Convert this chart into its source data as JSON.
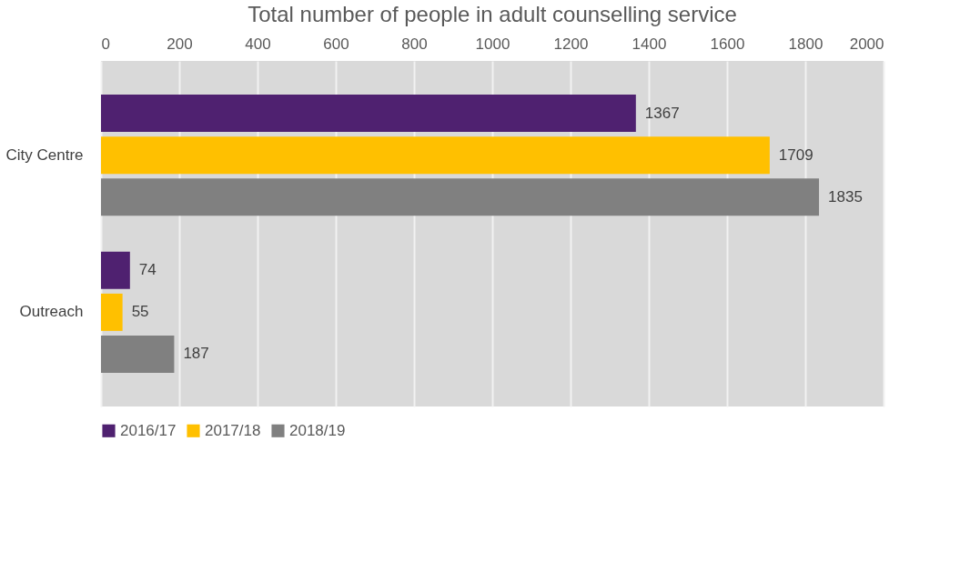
{
  "chart_data": {
    "type": "bar",
    "orientation": "horizontal",
    "title": "Total number of people in adult counselling service",
    "categories": [
      "City Centre",
      "Outreach"
    ],
    "series": [
      {
        "name": "2016/17",
        "color": "#4f2170",
        "values": [
          1367,
          74
        ]
      },
      {
        "name": "2017/18",
        "color": "#ffc000",
        "values": [
          1709,
          55
        ]
      },
      {
        "name": "2018/19",
        "color": "#808080",
        "values": [
          1835,
          187
        ]
      }
    ],
    "xlim": [
      0,
      2000
    ],
    "xticks": [
      0,
      200,
      400,
      600,
      800,
      1000,
      1200,
      1400,
      1600,
      1800,
      2000
    ],
    "grid": "x",
    "legend": "bottom",
    "data_labels": true
  }
}
